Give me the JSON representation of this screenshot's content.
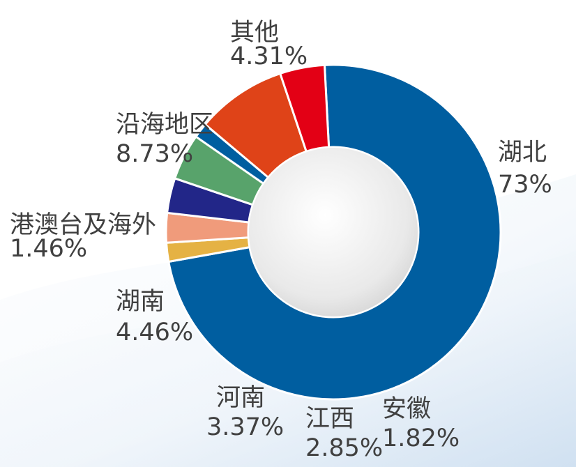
{
  "chart_data": {
    "type": "pie",
    "style": "donut",
    "legend": "none",
    "slices": [
      {
        "label": "湖北",
        "value_label": "73%",
        "value": 73.0,
        "color": "#005ea0"
      },
      {
        "label": "安徽",
        "value_label": "1.82%",
        "value": 1.82,
        "color": "#e5b244"
      },
      {
        "label": "江西",
        "value_label": "2.85%",
        "value": 2.85,
        "color": "#f09b7b"
      },
      {
        "label": "河南",
        "value_label": "3.37%",
        "value": 3.37,
        "color": "#222688"
      },
      {
        "label": "湖南",
        "value_label": "4.46%",
        "value": 4.46,
        "color": "#58a36b"
      },
      {
        "label": "港澳台及海外",
        "value_label": "1.46%",
        "value": 1.46,
        "color": "#005ea0"
      },
      {
        "label": "沿海地区",
        "value_label": "8.73%",
        "value": 8.73,
        "color": "#df4318"
      },
      {
        "label": "其他",
        "value_label": "4.31%",
        "value": 4.31,
        "color": "#e30015"
      }
    ]
  }
}
